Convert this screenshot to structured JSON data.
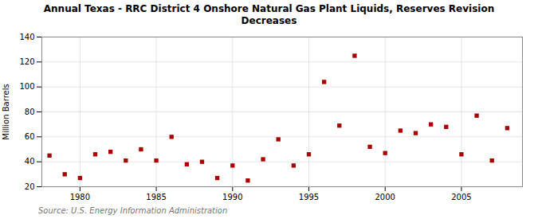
{
  "chart_data": {
    "type": "scatter",
    "title": "Annual Texas - RRC District 4 Onshore Natural Gas Plant Liquids, Reserves Revision\nDecreases",
    "ylabel": "Million Barrels",
    "source": "Source: U.S. Energy Information Administration",
    "x": [
      1978,
      1979,
      1980,
      1981,
      1982,
      1983,
      1984,
      1985,
      1986,
      1987,
      1988,
      1989,
      1990,
      1991,
      1992,
      1993,
      1994,
      1995,
      1996,
      1997,
      1998,
      1999,
      2000,
      2001,
      2002,
      2003,
      2004,
      2005,
      2006,
      2007,
      2008
    ],
    "values": [
      45,
      30,
      27,
      46,
      48,
      41,
      50,
      41,
      60,
      38,
      40,
      27,
      37,
      25,
      42,
      58,
      37,
      46,
      104,
      69,
      125,
      52,
      47,
      65,
      63,
      70,
      68,
      46,
      77,
      41,
      67
    ],
    "color": "#aa0000",
    "marker": "square",
    "xlim": [
      1977.5,
      2009
    ],
    "xticks": [
      1980,
      1985,
      1990,
      1995,
      2000,
      2005
    ],
    "ylim": [
      20,
      140
    ],
    "yticks": [
      20,
      40,
      60,
      80,
      100,
      120,
      140
    ],
    "grid": true
  }
}
